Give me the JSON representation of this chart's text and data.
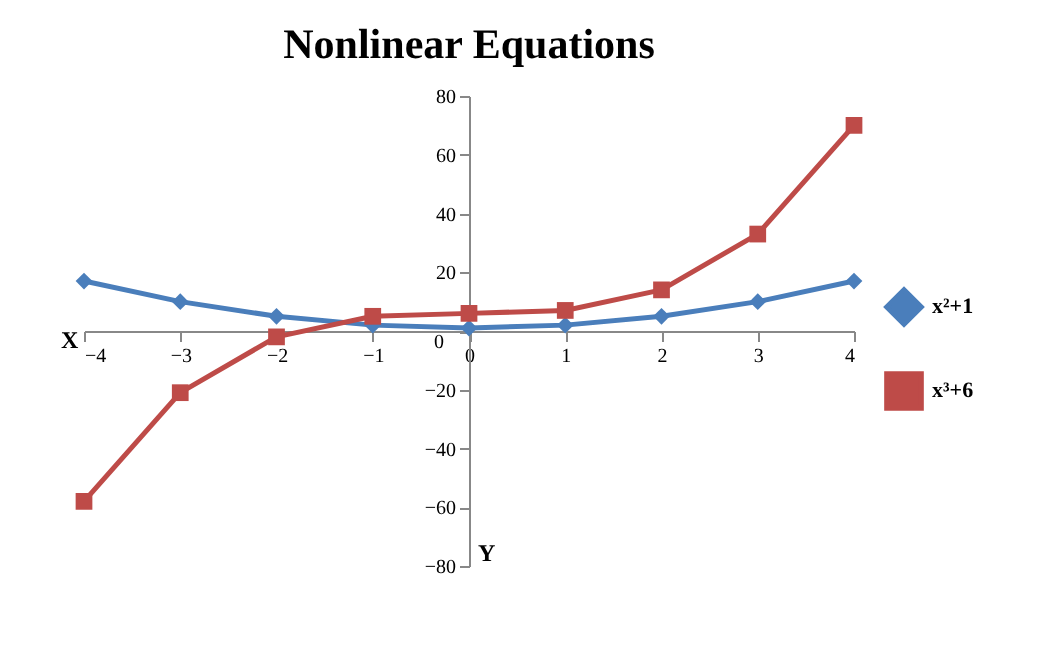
{
  "chart_data": {
    "type": "line",
    "title": "Nonlinear Equations",
    "xlabel": "X",
    "ylabel": "Y",
    "x": [
      -4,
      -3,
      -2,
      -1,
      0,
      1,
      2,
      3,
      4
    ],
    "series": [
      {
        "name": "x²+1",
        "color": "#4a7ebb",
        "marker": "diamond",
        "values": [
          17,
          10,
          5,
          2,
          1,
          2,
          5,
          10,
          17
        ]
      },
      {
        "name": "x³+6",
        "color": "#be4b48",
        "marker": "square",
        "values": [
          -58,
          -21,
          -2,
          5,
          6,
          7,
          14,
          33,
          70
        ]
      }
    ],
    "xlim": [
      -4,
      4
    ],
    "xticks": [
      -4,
      -3,
      -2,
      -1,
      0,
      1,
      2,
      3,
      4
    ],
    "ylim": [
      -80,
      80
    ],
    "yticks": [
      -80,
      -60,
      -40,
      -20,
      0,
      20,
      40,
      60,
      80
    ],
    "grid": false,
    "legend": "right"
  }
}
